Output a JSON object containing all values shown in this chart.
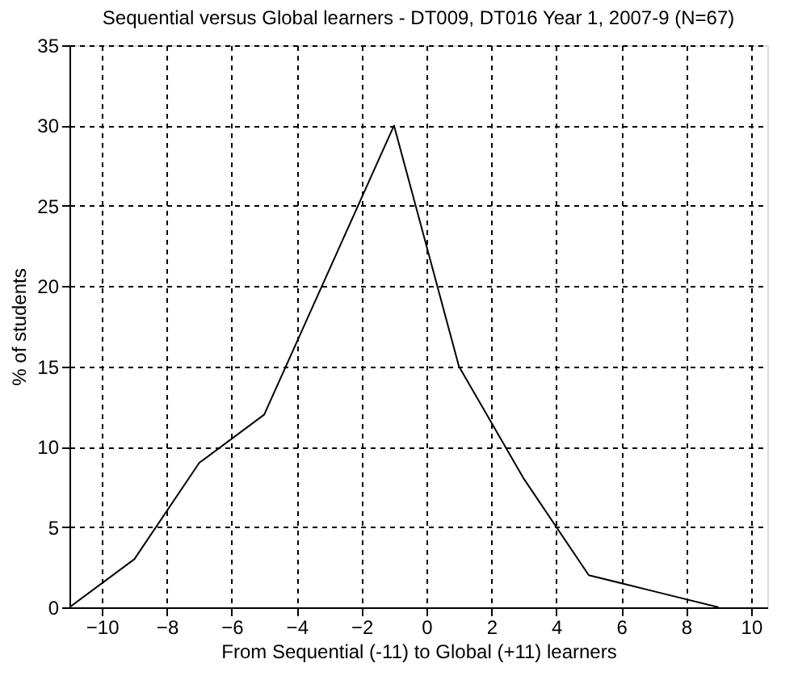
{
  "chart_data": {
    "type": "line",
    "title": "Sequential versus Global learners - DT009, DT016 Year 1, 2007-9 (N=67)",
    "xlabel": "From Sequential (-11) to Global (+11) learners",
    "ylabel": "% of students",
    "x": [
      -11,
      -9,
      -7,
      -5,
      -3,
      -1,
      1,
      3,
      5,
      7,
      9
    ],
    "series": [
      {
        "color": "#000000",
        "values": [
          0,
          3,
          9,
          12,
          21,
          30,
          15,
          8,
          2,
          1,
          0
        ]
      }
    ],
    "xlim": [
      -11,
      10.5
    ],
    "xticks": [
      -10,
      -8,
      -6,
      -4,
      -2,
      0,
      2,
      4,
      6,
      8,
      10
    ],
    "ylim": [
      0,
      35
    ],
    "yticks": [
      0,
      5,
      10,
      15,
      20,
      25,
      30,
      35
    ],
    "grid": true,
    "marker": "none",
    "line_style": "solid"
  }
}
